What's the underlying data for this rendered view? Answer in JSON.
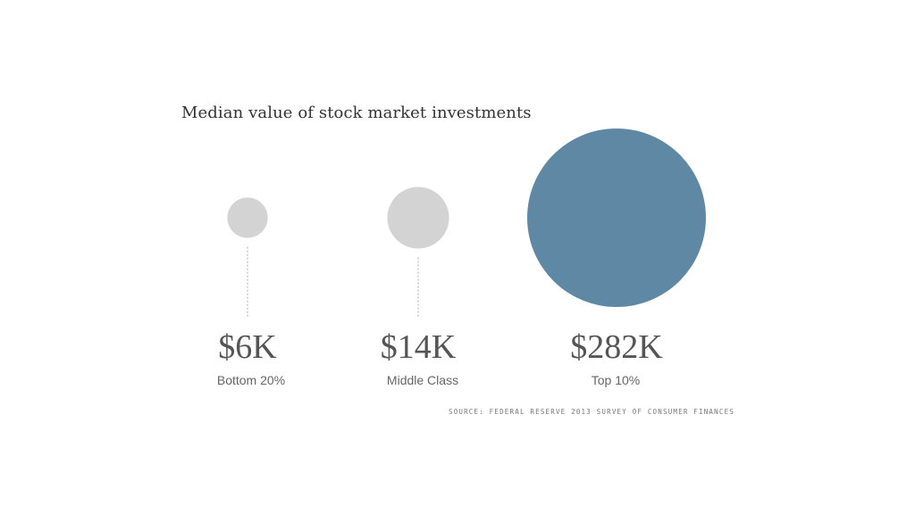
{
  "chart_data": {
    "type": "bubble",
    "title": "Median value of stock market investments",
    "categories": [
      "Bottom 20%",
      "Middle Class",
      "Top 10%"
    ],
    "values": [
      6,
      14,
      282
    ],
    "value_labels": [
      "$6K",
      "$14K",
      "$282K"
    ],
    "unit": "thousand USD",
    "highlight_index": 2,
    "colors": {
      "muted": "#d3d3d3",
      "highlight": "#5f88a5",
      "leader": "#aaaaaa"
    }
  },
  "source": "SOURCE: FEDERAL RESERVE 2013 SURVEY OF CONSUMER FINANCES"
}
